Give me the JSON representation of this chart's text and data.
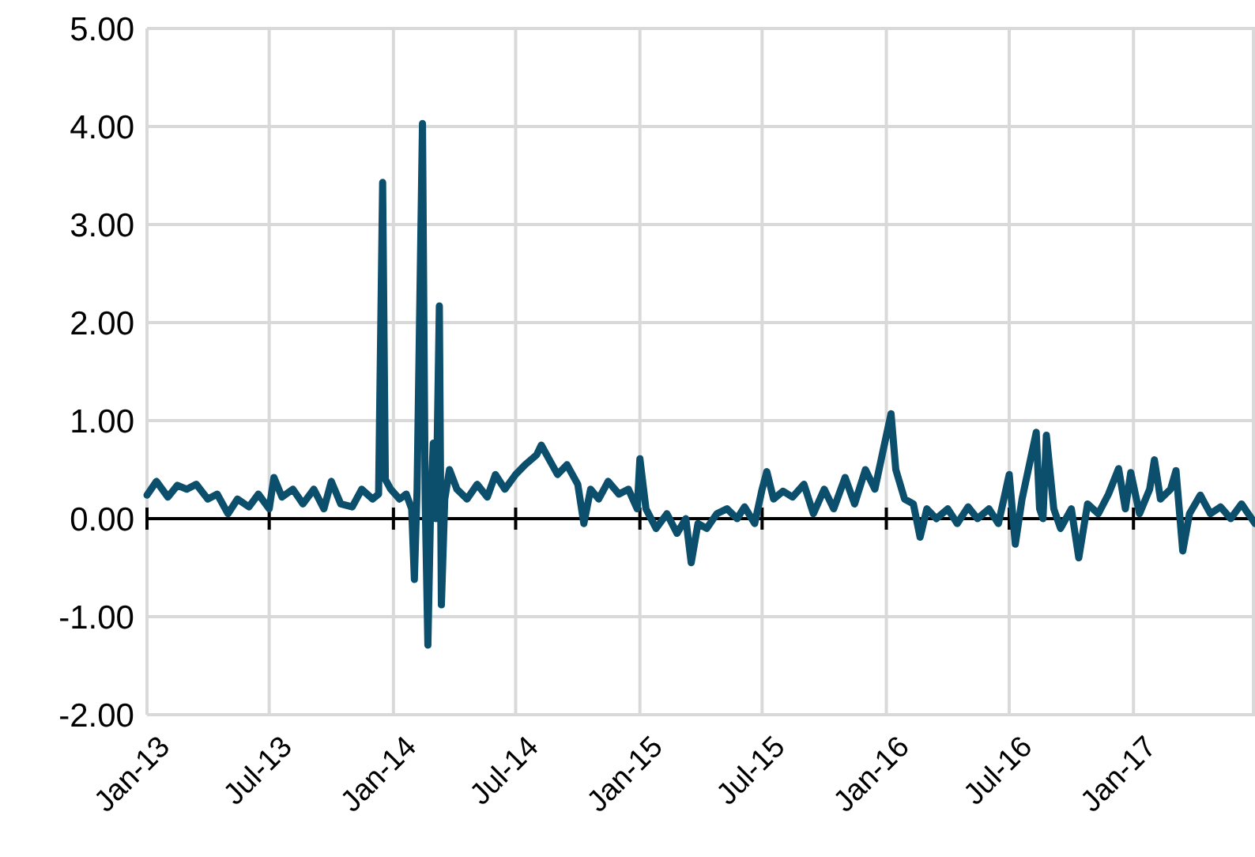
{
  "chart_data": {
    "type": "line",
    "grid": true,
    "line_style": "solid",
    "marker": "none",
    "xlim": [
      "2013-01-01",
      "2017-06-30"
    ],
    "xticks": [
      {
        "value": "2013-01-01",
        "label": "Jan-13"
      },
      {
        "value": "2013-07-01",
        "label": "Jul-13"
      },
      {
        "value": "2014-01-01",
        "label": "Jan-14"
      },
      {
        "value": "2014-07-01",
        "label": "Jul-14"
      },
      {
        "value": "2015-01-01",
        "label": "Jan-15"
      },
      {
        "value": "2015-07-01",
        "label": "Jul-15"
      },
      {
        "value": "2016-01-01",
        "label": "Jan-16"
      },
      {
        "value": "2016-07-01",
        "label": "Jul-16"
      },
      {
        "value": "2017-01-01",
        "label": "Jan-17"
      }
    ],
    "ylim": [
      -2,
      5
    ],
    "yticks": [
      {
        "value": -2,
        "label": "-2.00"
      },
      {
        "value": -1,
        "label": "-1.00"
      },
      {
        "value": 0,
        "label": "0.00"
      },
      {
        "value": 1,
        "label": "1.00"
      },
      {
        "value": 2,
        "label": "2.00"
      },
      {
        "value": 3,
        "label": "3.00"
      },
      {
        "value": 4,
        "label": "4.00"
      },
      {
        "value": 5,
        "label": "5.00"
      }
    ],
    "series": [
      {
        "color": "#0b4f6c",
        "x": [
          "2013-01-01",
          "2013-01-15",
          "2013-02-01",
          "2013-02-15",
          "2013-03-01",
          "2013-03-15",
          "2013-04-01",
          "2013-04-15",
          "2013-05-01",
          "2013-05-15",
          "2013-06-01",
          "2013-06-15",
          "2013-07-01",
          "2013-07-08",
          "2013-07-20",
          "2013-08-05",
          "2013-08-20",
          "2013-09-05",
          "2013-09-20",
          "2013-10-01",
          "2013-10-15",
          "2013-11-01",
          "2013-11-15",
          "2013-12-01",
          "2013-12-10",
          "2013-12-16",
          "2013-12-20",
          "2013-12-28",
          "2014-01-10",
          "2014-01-20",
          "2014-01-28",
          "2014-02-01",
          "2014-02-05",
          "2014-02-13",
          "2014-02-17",
          "2014-02-21",
          "2014-02-25",
          "2014-03-01",
          "2014-03-05",
          "2014-03-10",
          "2014-03-13",
          "2014-03-18",
          "2014-03-25",
          "2014-04-05",
          "2014-04-20",
          "2014-05-05",
          "2014-05-20",
          "2014-06-01",
          "2014-06-15",
          "2014-07-01",
          "2014-07-15",
          "2014-08-01",
          "2014-08-08",
          "2014-08-20",
          "2014-09-01",
          "2014-09-15",
          "2014-10-01",
          "2014-10-10",
          "2014-10-20",
          "2014-11-01",
          "2014-11-15",
          "2014-12-01",
          "2014-12-15",
          "2014-12-28",
          "2015-01-01",
          "2015-01-10",
          "2015-01-25",
          "2015-02-10",
          "2015-02-25",
          "2015-03-10",
          "2015-03-18",
          "2015-03-28",
          "2015-04-10",
          "2015-04-25",
          "2015-05-10",
          "2015-05-25",
          "2015-06-05",
          "2015-06-20",
          "2015-07-01",
          "2015-07-08",
          "2015-07-18",
          "2015-08-01",
          "2015-08-15",
          "2015-09-01",
          "2015-09-15",
          "2015-10-01",
          "2015-10-15",
          "2015-11-01",
          "2015-11-15",
          "2015-12-01",
          "2015-12-15",
          "2015-12-28",
          "2016-01-08",
          "2016-01-15",
          "2016-01-28",
          "2016-02-10",
          "2016-02-20",
          "2016-03-01",
          "2016-03-15",
          "2016-04-01",
          "2016-04-15",
          "2016-05-01",
          "2016-05-15",
          "2016-06-01",
          "2016-06-15",
          "2016-07-01",
          "2016-07-10",
          "2016-07-20",
          "2016-08-10",
          "2016-08-15",
          "2016-08-20",
          "2016-08-25",
          "2016-09-05",
          "2016-09-15",
          "2016-10-01",
          "2016-10-12",
          "2016-10-25",
          "2016-11-10",
          "2016-11-25",
          "2016-12-10",
          "2016-12-20",
          "2016-12-28",
          "2017-01-10",
          "2017-01-25",
          "2017-02-01",
          "2017-02-10",
          "2017-02-25",
          "2017-03-05",
          "2017-03-15",
          "2017-03-25",
          "2017-04-10",
          "2017-04-25",
          "2017-05-10",
          "2017-05-25",
          "2017-06-10",
          "2017-06-20",
          "2017-06-30"
        ],
        "values": [
          0.24,
          0.38,
          0.22,
          0.34,
          0.3,
          0.35,
          0.2,
          0.25,
          0.05,
          0.2,
          0.12,
          0.25,
          0.1,
          0.42,
          0.22,
          0.3,
          0.15,
          0.3,
          0.1,
          0.38,
          0.15,
          0.12,
          0.3,
          0.2,
          0.25,
          3.43,
          0.4,
          0.3,
          0.2,
          0.25,
          0.1,
          -0.62,
          0.3,
          4.03,
          0.2,
          -1.29,
          0.1,
          0.77,
          0.0,
          2.17,
          -0.88,
          0.2,
          0.5,
          0.3,
          0.2,
          0.35,
          0.22,
          0.45,
          0.3,
          0.45,
          0.55,
          0.65,
          0.75,
          0.6,
          0.45,
          0.55,
          0.35,
          -0.05,
          0.3,
          0.2,
          0.38,
          0.25,
          0.3,
          0.1,
          0.61,
          0.1,
          -0.1,
          0.05,
          -0.15,
          0.0,
          -0.45,
          -0.05,
          -0.1,
          0.05,
          0.1,
          0.0,
          0.12,
          -0.05,
          0.3,
          0.48,
          0.2,
          0.28,
          0.22,
          0.35,
          0.05,
          0.3,
          0.1,
          0.42,
          0.15,
          0.5,
          0.3,
          0.72,
          1.07,
          0.5,
          0.2,
          0.15,
          -0.19,
          0.1,
          0.0,
          0.1,
          -0.05,
          0.12,
          0.0,
          0.1,
          -0.05,
          0.45,
          -0.26,
          0.2,
          0.88,
          0.1,
          0.0,
          0.85,
          0.1,
          -0.1,
          0.1,
          -0.4,
          0.15,
          0.05,
          0.25,
          0.51,
          0.1,
          0.47,
          0.05,
          0.3,
          0.6,
          0.2,
          0.3,
          0.49,
          -0.33,
          0.05,
          0.24,
          0.05,
          0.12,
          0.0,
          0.15,
          0.05,
          -0.05
        ]
      }
    ]
  }
}
